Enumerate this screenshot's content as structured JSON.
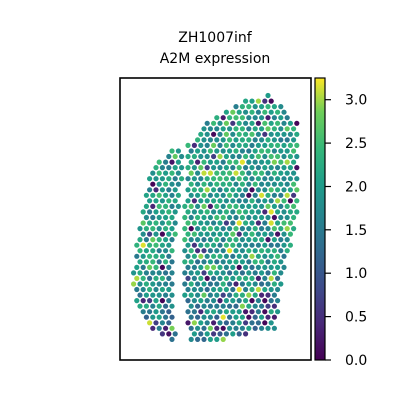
{
  "chart_data": {
    "type": "scatter",
    "title": "ZH1007inf",
    "subtitle": "A2M expression",
    "xlabel": "",
    "ylabel": "",
    "grid": false,
    "colorbar": {
      "colormap": "viridis",
      "range": [
        0.0,
        3.25
      ],
      "ticks": [
        0.0,
        0.5,
        1.0,
        1.5,
        2.0,
        2.5,
        3.0
      ],
      "tick_labels": [
        "0.0",
        "0.5",
        "1.0",
        "1.5",
        "2.0",
        "2.5",
        "3.0"
      ]
    },
    "spots": {
      "description": "hexagonal spatial spots; values range 0.0-3.25",
      "pitch": 6.4,
      "seed": 1007
    }
  }
}
